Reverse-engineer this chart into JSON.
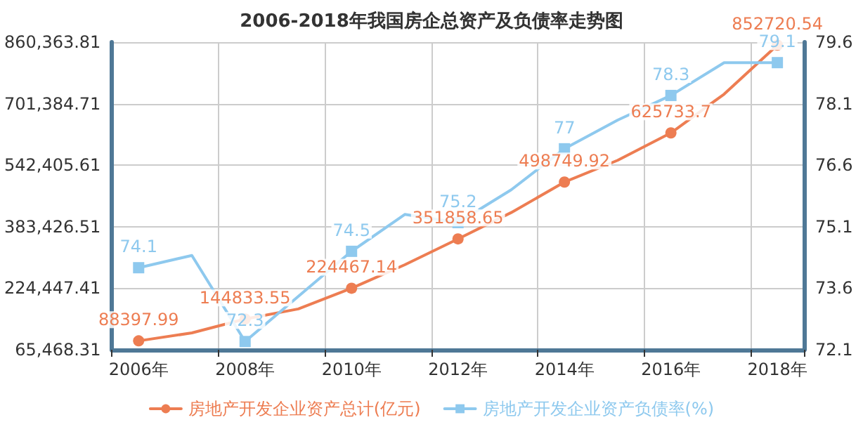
{
  "chart_data": {
    "type": "line",
    "title": "2006-2018年我国房企总资产及负债率走势图",
    "categories": [
      "2006年",
      null,
      "2008年",
      null,
      "2010年",
      null,
      "2012年",
      null,
      "2014年",
      null,
      "2016年",
      null,
      "2018年"
    ],
    "series": [
      {
        "name": "房地产开发企业资产总计(亿元)",
        "color": "#ed7d52",
        "marker": "circle",
        "values": [
          88397.99,
          109000,
          144833.55,
          171000,
          224467.14,
          285000,
          351858.65,
          420000,
          498749.92,
          555000,
          625733.7,
          726000,
          852720.54
        ],
        "value_labels": [
          "88397.99",
          null,
          "144833.55",
          null,
          "224467.14",
          null,
          "351858.65",
          null,
          "498749.92",
          null,
          "625733.7",
          null,
          "852720.54"
        ]
      },
      {
        "name": "房地产开发企业资产负债率(%)",
        "color": "#8ec9ee",
        "marker": "square",
        "axis": "y2",
        "values": [
          74.1,
          74.4,
          72.3,
          73.4,
          74.5,
          75.4,
          75.2,
          76.0,
          77.0,
          77.7,
          78.3,
          79.1,
          79.1
        ],
        "value_labels": [
          "74.1",
          null,
          "72.3",
          null,
          "74.5",
          null,
          "75.2",
          null,
          "77",
          null,
          "78.3",
          null,
          "79.1"
        ]
      }
    ],
    "ylim": [
      65468.31,
      860363.81
    ],
    "yticks": [
      {
        "value": 65468.31,
        "label": "65,468.31"
      },
      {
        "value": 224447.41,
        "label": "224,447.41"
      },
      {
        "value": 383426.51,
        "label": "383,426.51"
      },
      {
        "value": 542405.61,
        "label": "542,405.61"
      },
      {
        "value": 701384.71,
        "label": "701,384.71"
      },
      {
        "value": 860363.81,
        "label": "860,363.81"
      }
    ],
    "y2lim": [
      72.1,
      79.6
    ],
    "y2ticks": [
      72.1,
      73.6,
      75.1,
      76.6,
      78.1,
      79.6
    ],
    "grid": true,
    "legend": "bottom",
    "line_style": "solid"
  }
}
